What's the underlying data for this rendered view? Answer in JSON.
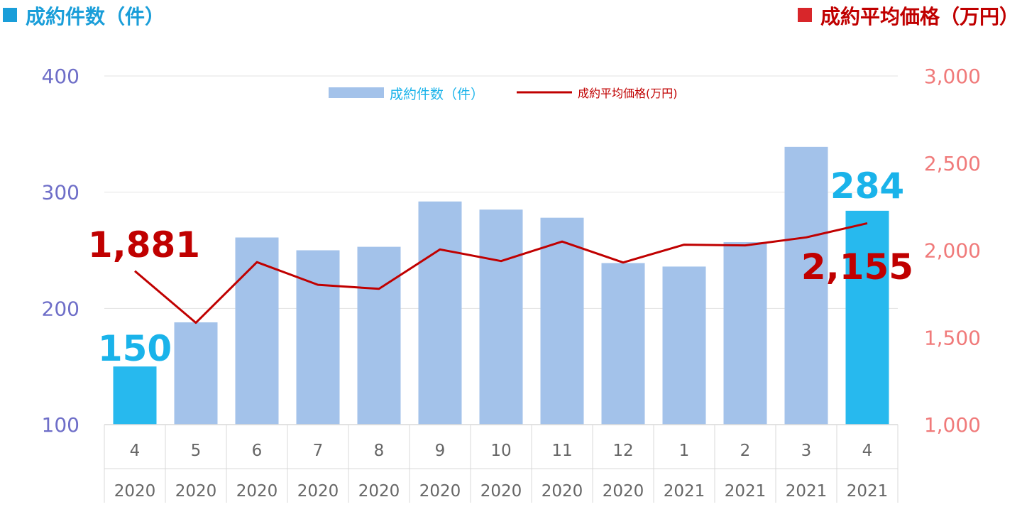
{
  "titles": {
    "left": "成約件数（件）",
    "right": "成約平均価格（万円）"
  },
  "colors": {
    "bar": "#a3c2ea",
    "bar_highlight": "#27b9ee",
    "line": "#c00000",
    "left_axis": "#6e6ec8",
    "right_axis": "#f07a7a",
    "label_count": "#1ab3ea",
    "label_price": "#c00000",
    "grid": "#e3e3e3",
    "tick": "#666666"
  },
  "chart_data": {
    "type": "bar",
    "categories": [
      "4",
      "5",
      "6",
      "7",
      "8",
      "9",
      "10",
      "11",
      "12",
      "1",
      "2",
      "3",
      "4"
    ],
    "years": [
      "2020",
      "2020",
      "2020",
      "2020",
      "2020",
      "2020",
      "2020",
      "2020",
      "2020",
      "2021",
      "2021",
      "2021",
      "2021"
    ],
    "series": [
      {
        "name": "成約件数（件）",
        "type": "bar",
        "axis": "left",
        "values": [
          150,
          188,
          261,
          250,
          253,
          292,
          285,
          278,
          239,
          236,
          257,
          339,
          284
        ],
        "highlight": [
          0,
          12
        ]
      },
      {
        "name": "成約平均価格(万円)",
        "type": "line",
        "axis": "right",
        "values": [
          1881,
          1584,
          1932,
          1802,
          1779,
          2005,
          1938,
          2050,
          1930,
          2032,
          2028,
          2074,
          2155
        ]
      }
    ],
    "y_left": {
      "ticks": [
        "100",
        "200",
        "300",
        "400"
      ],
      "ylim": [
        100,
        400
      ]
    },
    "y_right": {
      "ticks": [
        "1,000",
        "1,500",
        "2,000",
        "2,500",
        "3,000"
      ],
      "ylim": [
        1000,
        3000
      ]
    },
    "annotations": {
      "count_first": "150",
      "count_last": "284",
      "price_first": "1,881",
      "price_last": "2,155"
    },
    "legend": {
      "position": "top-center"
    },
    "grid": true
  }
}
